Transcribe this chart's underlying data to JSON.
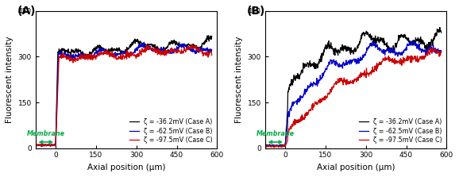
{
  "panel_A_label": "(A)",
  "panel_B_label": "(B)",
  "xlabel": "Axial position (μm)",
  "ylabel": "Fluorescent intensity",
  "xlim": [
    -75,
    600
  ],
  "ylim": [
    0,
    450
  ],
  "xticks": [
    0,
    150,
    300,
    450,
    600
  ],
  "yticks": [
    0,
    150,
    300,
    450
  ],
  "membrane_label": "Membrane",
  "membrane_color": "#00aa44",
  "legend_labels": [
    "ζ = -36.2mV (Case A)",
    "ζ = -62.5mV (Case B)",
    "ζ = -97.5mV (Case C)"
  ],
  "line_colors": [
    "#000000",
    "#0000cc",
    "#cc0000"
  ],
  "line_width": 0.9,
  "tick_fontsize": 6.5,
  "label_fontsize": 7.5,
  "legend_fontsize": 5.8,
  "panel_fontsize": 10
}
